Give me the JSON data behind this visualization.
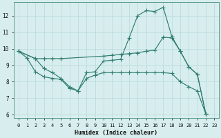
{
  "xlabel": "Humidex (Indice chaleur)",
  "bg_color": "#d8eeee",
  "grid_color": "#b8d8d8",
  "line_color": "#2e7d6e",
  "xlim": [
    -0.5,
    23.5
  ],
  "ylim": [
    5.8,
    12.8
  ],
  "yticks": [
    6,
    7,
    8,
    9,
    10,
    11,
    12
  ],
  "xticks": [
    0,
    1,
    2,
    3,
    4,
    5,
    6,
    7,
    8,
    9,
    10,
    11,
    12,
    13,
    14,
    15,
    16,
    17,
    18,
    19,
    20,
    21,
    22,
    23
  ],
  "series_a_x": [
    0,
    1,
    2,
    3,
    4,
    5,
    6,
    7,
    8,
    9,
    10,
    11,
    12,
    13,
    14,
    15,
    16,
    17,
    18,
    19,
    20,
    21,
    22
  ],
  "series_a_y": [
    9.85,
    9.45,
    8.6,
    8.3,
    8.2,
    8.15,
    7.6,
    7.45,
    8.55,
    8.6,
    9.25,
    9.3,
    9.35,
    10.65,
    12.0,
    12.3,
    12.25,
    12.5,
    10.75,
    9.85,
    8.9,
    8.45,
    6.05
  ],
  "series_b_x": [
    0,
    2,
    3,
    4,
    5,
    10,
    11,
    12,
    13,
    14,
    15,
    16,
    17,
    18,
    19,
    20,
    21,
    22
  ],
  "series_b_y": [
    9.85,
    9.4,
    9.4,
    9.4,
    9.4,
    9.55,
    9.6,
    9.65,
    9.7,
    9.75,
    9.85,
    9.9,
    10.7,
    10.65,
    9.85,
    8.9,
    8.45,
    6.05
  ],
  "series_c_x": [
    0,
    2,
    3,
    4,
    5,
    6,
    7,
    8,
    9,
    10,
    11,
    12,
    13,
    14,
    15,
    16,
    17,
    18,
    19,
    20,
    21,
    22
  ],
  "series_c_y": [
    9.85,
    9.4,
    8.8,
    8.55,
    8.2,
    7.7,
    7.45,
    8.2,
    8.4,
    8.55,
    8.55,
    8.55,
    8.55,
    8.55,
    8.55,
    8.55,
    8.55,
    8.5,
    8.0,
    7.7,
    7.45,
    6.05
  ]
}
